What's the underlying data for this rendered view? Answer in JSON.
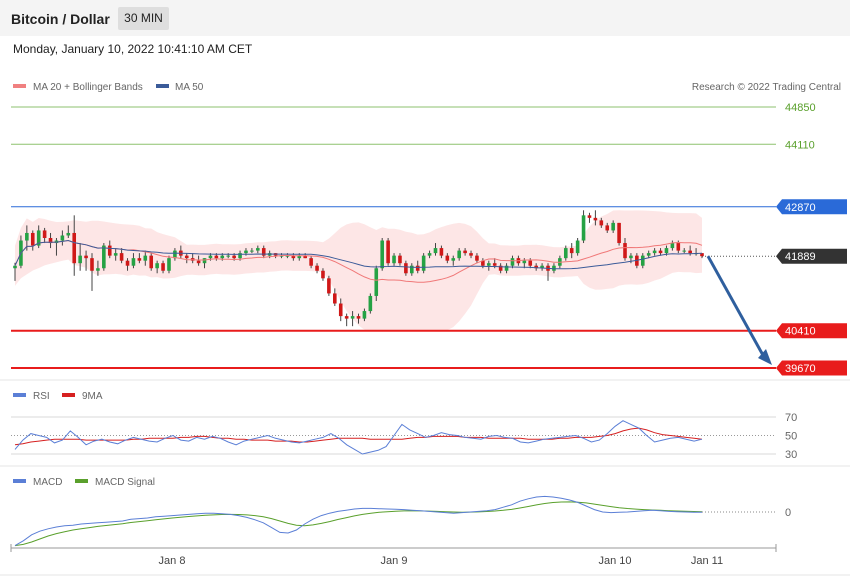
{
  "header": {
    "title": "Bitcoin / Dollar",
    "timeframe": "30 MIN"
  },
  "datetime": "Monday, January 10, 2022 10:41:10 AM CET",
  "legend": {
    "main": [
      "MA 20 + Bollinger Bands",
      "MA 50"
    ],
    "rsi": [
      "RSI",
      "9MA"
    ],
    "macd": [
      "MACD",
      "MACD Signal"
    ]
  },
  "copyright": "Research © 2022 Trading Central",
  "colors": {
    "resistance_green": "#8dc26f",
    "resistance_blue": "#2a6ad8",
    "support_red": "#e81c1c",
    "price_tag": "#333333",
    "bollinger_fill": "#fde3e3",
    "ma20": "#f07878",
    "ma50": "#3b5b99",
    "rsi": "#5b7fd6",
    "rsi_ma": "#d62020",
    "macd": "#5b7fd6",
    "macd_signal": "#5aa02c",
    "candle_up": "#25a244",
    "candle_down": "#d01818",
    "arrow": "#2f5f9e"
  },
  "chart_data": [
    {
      "type": "candlestick",
      "panel": "price",
      "levels": [
        {
          "value": 44850,
          "label": "44850",
          "kind": "resistance"
        },
        {
          "value": 44110,
          "label": "44110",
          "kind": "resistance"
        },
        {
          "value": 42870,
          "label": "42870",
          "kind": "pivot"
        },
        {
          "value": 41889,
          "label": "41889",
          "kind": "last-price"
        },
        {
          "value": 40410,
          "label": "40410",
          "kind": "support"
        },
        {
          "value": 39670,
          "label": "39670",
          "kind": "support"
        }
      ],
      "ylim": [
        39450,
        45050
      ],
      "x_ticks": [
        "Jan 8",
        "Jan 9",
        "Jan 10",
        "Jan 11"
      ],
      "forecast": {
        "from": 41889,
        "to": 39670,
        "direction": "down"
      },
      "candles": [
        [
          41650,
          41760,
          41400,
          41700
        ],
        [
          41700,
          42300,
          41650,
          42200
        ],
        [
          42200,
          42500,
          42000,
          42350
        ],
        [
          42350,
          42400,
          42000,
          42100
        ],
        [
          42100,
          42500,
          42050,
          42400
        ],
        [
          42400,
          42450,
          42150,
          42250
        ],
        [
          42250,
          42350,
          42050,
          42150
        ],
        [
          42150,
          42250,
          41900,
          42200
        ],
        [
          42200,
          42400,
          42100,
          42300
        ],
        [
          42300,
          42500,
          42250,
          42350
        ],
        [
          42350,
          42700,
          41500,
          41750
        ],
        [
          41750,
          42150,
          41600,
          41900
        ],
        [
          41900,
          42000,
          41600,
          41850
        ],
        [
          41850,
          41950,
          41200,
          41600
        ],
        [
          41600,
          41800,
          41500,
          41650
        ],
        [
          41650,
          42150,
          41600,
          42100
        ],
        [
          42100,
          42200,
          41850,
          41900
        ],
        [
          41900,
          42050,
          41800,
          41950
        ],
        [
          41950,
          42050,
          41750,
          41800
        ],
        [
          41800,
          41850,
          41600,
          41700
        ],
        [
          41700,
          41950,
          41650,
          41850
        ],
        [
          41850,
          41950,
          41750,
          41800
        ],
        [
          41800,
          42000,
          41700,
          41900
        ],
        [
          41900,
          41950,
          41600,
          41650
        ],
        [
          41650,
          41800,
          41550,
          41750
        ],
        [
          41750,
          41800,
          41550,
          41600
        ],
        [
          41600,
          41900,
          41550,
          41850
        ],
        [
          41850,
          42050,
          41800,
          42000
        ],
        [
          42000,
          42100,
          41850,
          41900
        ],
        [
          41900,
          41950,
          41750,
          41850
        ],
        [
          41850,
          41950,
          41750,
          41800
        ],
        [
          41800,
          41900,
          41700,
          41750
        ],
        [
          41750,
          41850,
          41650,
          41850
        ],
        [
          41850,
          41950,
          41800,
          41900
        ],
        [
          41900,
          41950,
          41800,
          41850
        ],
        [
          41850,
          41950,
          41800,
          41900
        ],
        [
          41900,
          41950,
          41850,
          41900
        ],
        [
          41900,
          41950,
          41800,
          41850
        ],
        [
          41850,
          42000,
          41800,
          41950
        ],
        [
          41950,
          42050,
          41900,
          42000
        ],
        [
          42000,
          42050,
          41950,
          42000
        ],
        [
          42000,
          42100,
          41950,
          42050
        ],
        [
          42050,
          42100,
          41850,
          41900
        ],
        [
          41900,
          42000,
          41850,
          41950
        ],
        [
          41950,
          41950,
          41850,
          41900
        ],
        [
          41900,
          41950,
          41850,
          41900
        ],
        [
          41900,
          41950,
          41850,
          41900
        ],
        [
          41900,
          41950,
          41800,
          41850
        ],
        [
          41850,
          41950,
          41800,
          41900
        ],
        [
          41900,
          41950,
          41850,
          41850
        ],
        [
          41850,
          41900,
          41650,
          41700
        ],
        [
          41700,
          41750,
          41550,
          41600
        ],
        [
          41600,
          41650,
          41400,
          41450
        ],
        [
          41450,
          41500,
          41100,
          41150
        ],
        [
          41150,
          41250,
          40900,
          40950
        ],
        [
          40950,
          41050,
          40600,
          40700
        ],
        [
          40700,
          40750,
          40500,
          40650
        ],
        [
          40650,
          40800,
          40500,
          40700
        ],
        [
          40700,
          40750,
          40550,
          40650
        ],
        [
          40650,
          40850,
          40600,
          40800
        ],
        [
          40800,
          41150,
          40750,
          41100
        ],
        [
          41100,
          41700,
          41000,
          41650
        ],
        [
          41650,
          42250,
          41600,
          42200
        ],
        [
          42200,
          42250,
          41700,
          41750
        ],
        [
          41750,
          41950,
          41700,
          41900
        ],
        [
          41900,
          41950,
          41700,
          41750
        ],
        [
          41750,
          41800,
          41500,
          41550
        ],
        [
          41550,
          41750,
          41500,
          41700
        ],
        [
          41700,
          41800,
          41550,
          41600
        ],
        [
          41600,
          41950,
          41550,
          41900
        ],
        [
          41900,
          42000,
          41850,
          41950
        ],
        [
          41950,
          42150,
          41900,
          42050
        ],
        [
          42050,
          42100,
          41850,
          41900
        ],
        [
          41900,
          41950,
          41750,
          41800
        ],
        [
          41800,
          41900,
          41700,
          41850
        ],
        [
          41850,
          42050,
          41800,
          42000
        ],
        [
          42000,
          42050,
          41900,
          41950
        ],
        [
          41950,
          42000,
          41850,
          41900
        ],
        [
          41900,
          41950,
          41750,
          41800
        ],
        [
          41800,
          41850,
          41650,
          41700
        ],
        [
          41700,
          41800,
          41600,
          41750
        ],
        [
          41750,
          41850,
          41650,
          41700
        ],
        [
          41700,
          41750,
          41550,
          41600
        ],
        [
          41600,
          41750,
          41550,
          41700
        ],
        [
          41700,
          41900,
          41650,
          41850
        ],
        [
          41850,
          41900,
          41700,
          41750
        ],
        [
          41750,
          41850,
          41650,
          41800
        ],
        [
          41800,
          41850,
          41650,
          41700
        ],
        [
          41700,
          41750,
          41600,
          41650
        ],
        [
          41650,
          41750,
          41600,
          41700
        ],
        [
          41700,
          41750,
          41400,
          41600
        ],
        [
          41600,
          41750,
          41550,
          41700
        ],
        [
          41700,
          41900,
          41650,
          41850
        ],
        [
          41850,
          42100,
          41800,
          42050
        ],
        [
          42050,
          42150,
          41850,
          41950
        ],
        [
          41950,
          42250,
          41900,
          42200
        ],
        [
          42200,
          42800,
          42150,
          42700
        ],
        [
          42700,
          42750,
          42550,
          42650
        ],
        [
          42650,
          42800,
          42500,
          42600
        ],
        [
          42600,
          42650,
          42450,
          42500
        ],
        [
          42500,
          42550,
          42350,
          42400
        ],
        [
          42400,
          42600,
          42350,
          42550
        ],
        [
          42550,
          42550,
          42100,
          42150
        ],
        [
          42150,
          42250,
          41800,
          41850
        ],
        [
          41850,
          41950,
          41750,
          41900
        ],
        [
          41900,
          41950,
          41650,
          41700
        ],
        [
          41700,
          41950,
          41650,
          41900
        ],
        [
          41900,
          42000,
          41850,
          41950
        ],
        [
          41950,
          42050,
          41900,
          42000
        ],
        [
          42000,
          42050,
          41900,
          41950
        ],
        [
          41950,
          42100,
          41900,
          42050
        ],
        [
          42050,
          42200,
          42000,
          42150
        ],
        [
          42150,
          42200,
          41950,
          42000
        ],
        [
          42000,
          42050,
          41950,
          42000
        ],
        [
          42000,
          42100,
          41900,
          41950
        ],
        [
          41950,
          42050,
          41900,
          41950
        ],
        [
          41950,
          41950,
          41850,
          41889
        ]
      ]
    },
    {
      "type": "line",
      "panel": "rsi",
      "y_ticks": [
        70,
        50,
        30
      ],
      "ylim": [
        20,
        80
      ],
      "series": [
        {
          "name": "RSI",
          "values": [
            35,
            45,
            52,
            50,
            48,
            42,
            45,
            55,
            48,
            40,
            44,
            46,
            43,
            41,
            45,
            48,
            46,
            44,
            43,
            47,
            50,
            45,
            44,
            48,
            46,
            49,
            47,
            43,
            40,
            44,
            46,
            48,
            50,
            47,
            45,
            43,
            42,
            44,
            46,
            48,
            52,
            47,
            40,
            35,
            30,
            32,
            34,
            38,
            50,
            62,
            56,
            52,
            48,
            50,
            53,
            51,
            50,
            48,
            47,
            46,
            49,
            50,
            48,
            47,
            43,
            42,
            44,
            46,
            47,
            48,
            49,
            50,
            47,
            43,
            45,
            52,
            60,
            66,
            62,
            58,
            50,
            43,
            45,
            47,
            48,
            46,
            44,
            46
          ]
        },
        {
          "name": "9MA",
          "values": [
            40,
            41,
            43,
            44,
            45,
            46,
            46,
            46,
            46,
            45,
            45,
            45,
            45,
            45,
            45,
            46,
            46,
            47,
            47,
            47,
            47,
            48,
            48,
            49,
            49,
            48,
            47,
            47,
            46,
            46,
            45,
            45,
            45,
            44,
            44,
            44,
            43,
            43,
            44,
            45,
            46,
            47,
            47,
            47,
            47,
            46,
            46,
            46,
            46,
            46,
            47,
            48,
            48,
            49,
            49,
            49,
            49,
            48,
            48,
            48,
            47,
            47,
            47,
            47,
            47,
            46,
            46,
            46,
            46,
            47,
            47,
            48,
            48,
            48,
            49,
            50,
            52,
            55,
            57,
            58,
            56,
            53,
            51,
            50,
            49,
            48,
            47,
            46
          ]
        }
      ]
    },
    {
      "type": "line",
      "panel": "macd",
      "y_ticks": [
        0
      ],
      "ylim": [
        -600,
        400
      ],
      "series": [
        {
          "name": "MACD",
          "values": [
            -560,
            -480,
            -380,
            -320,
            -280,
            -250,
            -230,
            -220,
            -200,
            -190,
            -180,
            -170,
            -160,
            -150,
            -120,
            -110,
            -100,
            -80,
            -70,
            -60,
            -50,
            -40,
            -30,
            -20,
            -20,
            -30,
            -40,
            -60,
            -90,
            -130,
            -180,
            -260,
            -340,
            -350,
            -300,
            -200,
            -120,
            -60,
            -20,
            10,
            30,
            50,
            60,
            60,
            55,
            50,
            45,
            40,
            30,
            20,
            10,
            0,
            -10,
            -20,
            -10,
            0,
            10,
            20,
            40,
            80,
            120,
            180,
            220,
            250,
            260,
            250,
            230,
            200,
            160,
            100,
            40,
            0,
            -10,
            -5,
            0,
            10,
            20,
            30,
            20,
            10,
            5,
            0,
            -5,
            -5
          ]
        },
        {
          "name": "MACD Signal",
          "values": [
            -560,
            -540,
            -500,
            -450,
            -400,
            -360,
            -330,
            -300,
            -280,
            -260,
            -240,
            -225,
            -210,
            -195,
            -175,
            -160,
            -145,
            -130,
            -115,
            -100,
            -88,
            -75,
            -65,
            -55,
            -48,
            -42,
            -40,
            -42,
            -48,
            -60,
            -80,
            -110,
            -150,
            -190,
            -220,
            -230,
            -215,
            -190,
            -160,
            -125,
            -95,
            -65,
            -40,
            -20,
            -5,
            5,
            12,
            18,
            20,
            18,
            15,
            10,
            5,
            0,
            -3,
            -2,
            2,
            8,
            16,
            28,
            44,
            66,
            92,
            118,
            142,
            158,
            166,
            168,
            164,
            152,
            132,
            110,
            90,
            72,
            58,
            48,
            40,
            34,
            28,
            22,
            16,
            12,
            8,
            4
          ]
        }
      ]
    }
  ]
}
